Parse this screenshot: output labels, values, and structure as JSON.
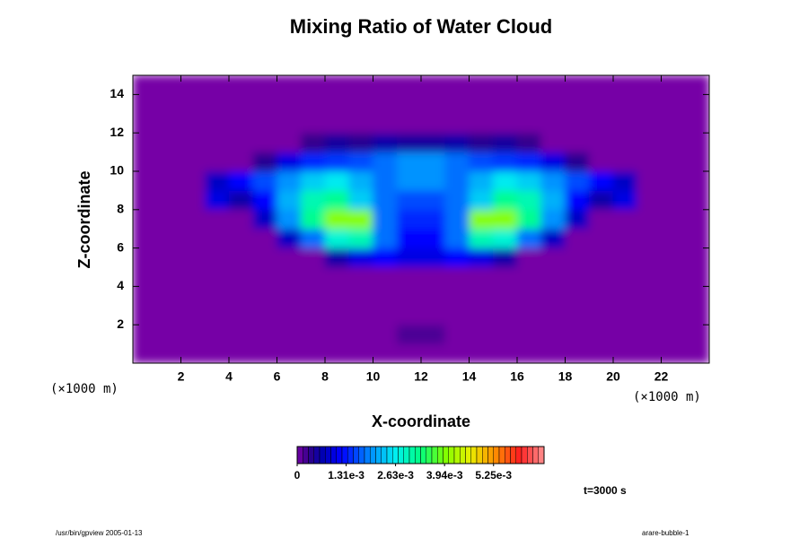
{
  "chart_data": {
    "type": "heatmap",
    "title": "Mixing Ratio of Water Cloud",
    "xlabel": "X-coordinate",
    "ylabel": "Z-coordinate",
    "x_unit": "(×1000 m)",
    "y_unit": "(×1000 m)",
    "time_label": "t=3000 s",
    "footer_left": "/usr/bin/gpview 2005-01-13",
    "footer_right": "arare-bubble-1",
    "xlim": [
      0,
      24
    ],
    "ylim": [
      0,
      15
    ],
    "xticks": [
      2,
      4,
      6,
      8,
      10,
      12,
      14,
      16,
      18,
      20,
      22
    ],
    "yticks": [
      2,
      4,
      6,
      8,
      10,
      12,
      14
    ],
    "clim": [
      0,
      0.0066
    ],
    "colorbar_ticks": [
      0,
      {
        "value": 0.00131,
        "label": "1.31e-3"
      },
      {
        "value": 0.00263,
        "label": "2.63e-3"
      },
      {
        "value": 0.00394,
        "label": "3.94e-3"
      },
      {
        "value": 0.00525,
        "label": "5.25e-3"
      }
    ],
    "x": [
      0.5,
      1.5,
      2.5,
      3.5,
      4.5,
      5.5,
      6.5,
      7.5,
      8.5,
      9.5,
      10.5,
      11.5,
      12.5,
      13.5,
      14.5,
      15.5,
      16.5,
      17.5,
      18.5,
      19.5,
      20.5,
      21.5,
      22.5,
      23.5
    ],
    "y": [
      0.5,
      1.5,
      2.5,
      3.5,
      4.5,
      5.5,
      6.5,
      7.5,
      8.5,
      9.5,
      10.5,
      11.5,
      12.5,
      13.5,
      14.5
    ],
    "z": [
      [
        0,
        0,
        0,
        0,
        0,
        0,
        0,
        0,
        0,
        0,
        0,
        0,
        0,
        0,
        0,
        0,
        0,
        0,
        0,
        0,
        0,
        0,
        0,
        0
      ],
      [
        0,
        0,
        0,
        0,
        0,
        0,
        0,
        0,
        0,
        0,
        0,
        0.0002,
        0.0002,
        0,
        0,
        0,
        0,
        0,
        0,
        0,
        0,
        0,
        0,
        0
      ],
      [
        0,
        0,
        0,
        0,
        0,
        0,
        0,
        0,
        0,
        0,
        0,
        0,
        0,
        0,
        0,
        0,
        0,
        0,
        0,
        0,
        0,
        0,
        0,
        0
      ],
      [
        0,
        0,
        0,
        0,
        0,
        0,
        0,
        0,
        0,
        0,
        0,
        0,
        0,
        0,
        0,
        0,
        0,
        0,
        0,
        0,
        0,
        0,
        0,
        0
      ],
      [
        0,
        0,
        0,
        0,
        0,
        0,
        0,
        0,
        0,
        0,
        0,
        0,
        0,
        0,
        0,
        0,
        0,
        0,
        0,
        0,
        0,
        0,
        0,
        0
      ],
      [
        0,
        0,
        0,
        0,
        0,
        0,
        0,
        0,
        0.0006,
        0.001,
        0.0012,
        0.001,
        0.001,
        0.0012,
        0.001,
        0.0006,
        0,
        0,
        0,
        0,
        0,
        0,
        0,
        0
      ],
      [
        0,
        0,
        0,
        0,
        0,
        0,
        0.0008,
        0.0018,
        0.0028,
        0.003,
        0.0018,
        0.0012,
        0.0012,
        0.0018,
        0.003,
        0.0028,
        0.0018,
        0.0008,
        0,
        0,
        0,
        0,
        0,
        0
      ],
      [
        0,
        0,
        0,
        0,
        0,
        0.0008,
        0.002,
        0.0032,
        0.004,
        0.004,
        0.0018,
        0.0014,
        0.0014,
        0.0018,
        0.004,
        0.004,
        0.0032,
        0.002,
        0.0008,
        0,
        0,
        0,
        0,
        0
      ],
      [
        0,
        0,
        0,
        0.001,
        0.0006,
        0.0012,
        0.0022,
        0.003,
        0.0032,
        0.0024,
        0.0018,
        0.0016,
        0.0016,
        0.0018,
        0.0024,
        0.0032,
        0.003,
        0.0022,
        0.0012,
        0.0006,
        0.001,
        0,
        0,
        0
      ],
      [
        0,
        0,
        0,
        0.0008,
        0.0012,
        0.0016,
        0.002,
        0.0024,
        0.0026,
        0.0022,
        0.0018,
        0.002,
        0.002,
        0.0018,
        0.0022,
        0.0026,
        0.0024,
        0.002,
        0.0016,
        0.0012,
        0.0008,
        0,
        0,
        0
      ],
      [
        0,
        0,
        0,
        0,
        0,
        0.0004,
        0.001,
        0.0014,
        0.0015,
        0.0016,
        0.0018,
        0.002,
        0.002,
        0.0018,
        0.0016,
        0.0015,
        0.0014,
        0.001,
        0.0004,
        0,
        0,
        0,
        0,
        0
      ],
      [
        0,
        0,
        0,
        0,
        0,
        0,
        0,
        0.0003,
        0.0005,
        0.0004,
        0.0006,
        0.0005,
        0.0005,
        0.0006,
        0.0004,
        0.0005,
        0.0003,
        0,
        0,
        0,
        0,
        0,
        0,
        0
      ],
      [
        0,
        0,
        0,
        0,
        0,
        0,
        0,
        0,
        0,
        0,
        0,
        0,
        0,
        0,
        0,
        0,
        0,
        0,
        0,
        0,
        0,
        0,
        0,
        0
      ],
      [
        0,
        0,
        0,
        0,
        0,
        0,
        0,
        0,
        0,
        0,
        0,
        0,
        0,
        0,
        0,
        0,
        0,
        0,
        0,
        0,
        0,
        0,
        0,
        0
      ],
      [
        0,
        0,
        0,
        0,
        0,
        0,
        0,
        0,
        0,
        0,
        0,
        0,
        0,
        0,
        0,
        0,
        0,
        0,
        0,
        0,
        0,
        0,
        0,
        0
      ]
    ]
  }
}
